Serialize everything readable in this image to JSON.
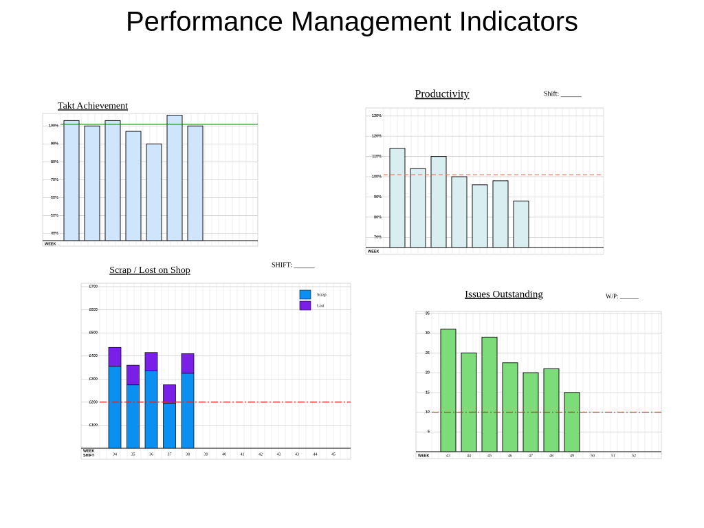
{
  "title": "Performance Management Indicators",
  "chart_data": [
    {
      "type": "bar",
      "title": "Takt Achievement",
      "x_label": "WEEK",
      "values": [
        103,
        100,
        103,
        97,
        90,
        106,
        100
      ],
      "color": "#cfe5fb",
      "ylim": [
        36,
        107
      ],
      "yticks": [
        {
          "value": 40,
          "label": "40%"
        },
        {
          "value": 50,
          "label": "50%"
        },
        {
          "value": 60,
          "label": "60%"
        },
        {
          "value": 70,
          "label": "70%"
        },
        {
          "value": 80,
          "label": "80%"
        },
        {
          "value": 90,
          "label": "90%"
        },
        {
          "value": 100,
          "label": "100%"
        }
      ],
      "grid": true,
      "target": 101,
      "target_color": "#2e7d32",
      "target_style": "solid"
    },
    {
      "type": "bar",
      "title": "Productivity",
      "annotation": "Shift: ______",
      "x_label": "WEEK",
      "values": [
        114,
        104,
        110,
        100,
        96,
        98,
        88
      ],
      "color": "#d9eef0",
      "ylim": [
        65,
        134
      ],
      "yticks": [
        {
          "value": 70,
          "label": "70%"
        },
        {
          "value": 80,
          "label": "80%"
        },
        {
          "value": 90,
          "label": "90%"
        },
        {
          "value": 100,
          "label": "100%"
        },
        {
          "value": 110,
          "label": "110%"
        },
        {
          "value": 120,
          "label": "120%"
        },
        {
          "value": 130,
          "label": "130%"
        }
      ],
      "grid": true,
      "target": 101,
      "target_color": "#e8735a",
      "target_style": "dashed"
    },
    {
      "type": "stacked_bar",
      "title": "Scrap / Lost on Shop",
      "annotation": "SHIFT: ______",
      "x_labels": [
        "WEEK",
        "SHIFT"
      ],
      "categories": [
        "34",
        "35",
        "36",
        "37",
        "38",
        "39",
        "40",
        "41",
        "42",
        "43",
        "43",
        "44",
        "45"
      ],
      "series": [
        {
          "name": "Scrap",
          "color": "#0a90f0",
          "values": [
            355,
            275,
            335,
            195,
            325,
            null,
            null,
            null,
            null,
            null,
            null,
            null,
            null
          ]
        },
        {
          "name": "Lost",
          "color": "#7a1fe8",
          "values": [
            82,
            85,
            80,
            80,
            85,
            null,
            null,
            null,
            null,
            null,
            null,
            null,
            null
          ]
        }
      ],
      "ylim": [
        0,
        715
      ],
      "yticks": [
        {
          "value": 100,
          "label": "£100"
        },
        {
          "value": 200,
          "label": "£200"
        },
        {
          "value": 300,
          "label": "£300"
        },
        {
          "value": 400,
          "label": "£400"
        },
        {
          "value": 500,
          "label": "£500"
        },
        {
          "value": 600,
          "label": "£600"
        },
        {
          "value": 700,
          "label": "£700"
        }
      ],
      "grid": true,
      "legend": "top-right",
      "target": 200,
      "target_color": "#e02020",
      "target_style": "dash-dot"
    },
    {
      "type": "bar",
      "title": "Issues Outstanding",
      "annotation": "W/P: ______",
      "x_label": "WEEK",
      "categories": [
        "43",
        "44",
        "45",
        "46",
        "47",
        "48",
        "49",
        "50",
        "51",
        "52"
      ],
      "values": [
        31,
        25,
        29,
        22.5,
        20,
        21,
        15,
        null,
        null,
        null
      ],
      "color": "#7ddc7a",
      "ylim": [
        0,
        35.5
      ],
      "yticks": [
        5,
        10,
        15,
        20,
        25,
        30,
        35
      ],
      "grid": true,
      "target": 10,
      "target_color": "#e02020",
      "target_style": "dash-dot"
    }
  ]
}
